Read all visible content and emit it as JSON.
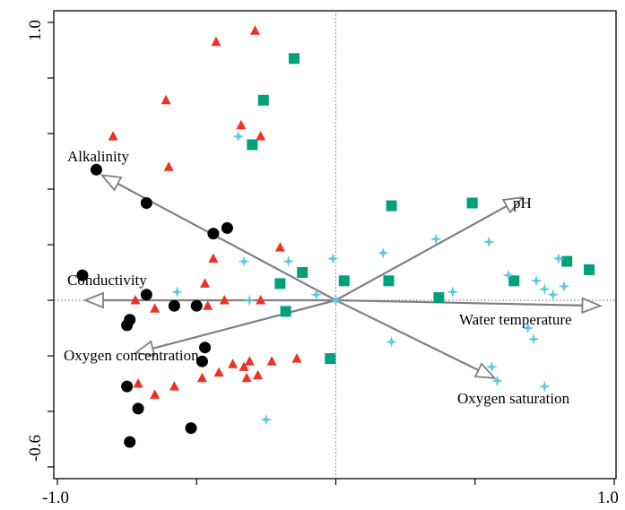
{
  "chart_data": {
    "type": "scatter",
    "subtype": "biplot",
    "title": "",
    "xlabel": "",
    "ylabel": "",
    "xlim": [
      -1.0,
      1.0
    ],
    "ylim": [
      -0.6,
      1.0
    ],
    "x_tick_labels": [
      "-1.0",
      "1.0"
    ],
    "y_tick_labels": [
      "1.0",
      "-0.6"
    ],
    "grid": false,
    "zero_lines": true,
    "colors": {
      "circle": "#000000",
      "triangle": "#ee3124",
      "square": "#00a07a",
      "star": "#5bc8e8",
      "arrow": "#808080"
    },
    "vectors": [
      {
        "label": "Alkalinity",
        "x": -0.84,
        "y": 0.45
      },
      {
        "label": "pH",
        "x": 0.67,
        "y": 0.37
      },
      {
        "label": "Conductivity",
        "x": -0.9,
        "y": 0.0
      },
      {
        "label": "Water temperature",
        "x": 0.95,
        "y": -0.02
      },
      {
        "label": "Oxygen concentration",
        "x": -0.72,
        "y": -0.19
      },
      {
        "label": "Oxygen saturation",
        "x": 0.57,
        "y": -0.28
      }
    ],
    "series": [
      {
        "marker": "circle",
        "points": [
          [
            -0.86,
            0.47
          ],
          [
            -0.68,
            0.35
          ],
          [
            -0.44,
            0.24
          ],
          [
            -0.39,
            0.26
          ],
          [
            -0.91,
            0.09
          ],
          [
            -0.68,
            0.02
          ],
          [
            -0.74,
            -0.07
          ],
          [
            -0.75,
            -0.09
          ],
          [
            -0.58,
            -0.02
          ],
          [
            -0.5,
            -0.02
          ],
          [
            -0.47,
            -0.17
          ],
          [
            -0.48,
            -0.22
          ],
          [
            -0.75,
            -0.31
          ],
          [
            -0.71,
            -0.39
          ],
          [
            -0.52,
            -0.46
          ],
          [
            -0.74,
            -0.51
          ]
        ]
      },
      {
        "marker": "triangle",
        "points": [
          [
            -0.43,
            0.93
          ],
          [
            -0.29,
            0.97
          ],
          [
            -0.61,
            0.72
          ],
          [
            -0.8,
            0.59
          ],
          [
            -0.34,
            0.63
          ],
          [
            -0.27,
            0.59
          ],
          [
            -0.6,
            0.48
          ],
          [
            -0.2,
            0.19
          ],
          [
            -0.44,
            0.15
          ],
          [
            -0.47,
            0.06
          ],
          [
            -0.4,
            0.0
          ],
          [
            -0.46,
            -0.02
          ],
          [
            -0.27,
            0.0
          ],
          [
            -0.72,
            0.0
          ],
          [
            -0.65,
            -0.03
          ],
          [
            -0.37,
            -0.23
          ],
          [
            -0.33,
            -0.24
          ],
          [
            -0.31,
            -0.22
          ],
          [
            -0.23,
            -0.22
          ],
          [
            -0.14,
            -0.21
          ],
          [
            -0.42,
            -0.26
          ],
          [
            -0.48,
            -0.28
          ],
          [
            -0.58,
            -0.31
          ],
          [
            -0.71,
            -0.3
          ],
          [
            -0.32,
            -0.28
          ],
          [
            -0.28,
            -0.27
          ],
          [
            -0.65,
            -0.34
          ]
        ]
      },
      {
        "marker": "square",
        "points": [
          [
            -0.15,
            0.87
          ],
          [
            -0.26,
            0.72
          ],
          [
            -0.3,
            0.56
          ],
          [
            0.2,
            0.34
          ],
          [
            0.49,
            0.35
          ],
          [
            0.83,
            0.14
          ],
          [
            0.91,
            0.11
          ],
          [
            0.64,
            0.07
          ],
          [
            -0.12,
            0.1
          ],
          [
            -0.2,
            0.06
          ],
          [
            0.03,
            0.07
          ],
          [
            0.19,
            0.07
          ],
          [
            0.37,
            0.01
          ],
          [
            -0.18,
            -0.04
          ],
          [
            -0.02,
            -0.21
          ]
        ]
      },
      {
        "marker": "star",
        "points": [
          [
            -0.35,
            0.59
          ],
          [
            0.36,
            0.22
          ],
          [
            0.55,
            0.21
          ],
          [
            0.17,
            0.17
          ],
          [
            0.8,
            0.15
          ],
          [
            -0.33,
            0.14
          ],
          [
            -0.17,
            0.14
          ],
          [
            -0.01,
            0.15
          ],
          [
            0.62,
            0.09
          ],
          [
            0.72,
            0.07
          ],
          [
            0.42,
            0.03
          ],
          [
            0.75,
            0.04
          ],
          [
            0.82,
            0.05
          ],
          [
            0.78,
            0.02
          ],
          [
            -0.57,
            0.03
          ],
          [
            -0.31,
            0.0
          ],
          [
            -0.07,
            0.02
          ],
          [
            0.69,
            -0.1
          ],
          [
            0.2,
            -0.15
          ],
          [
            0.71,
            -0.14
          ],
          [
            0.56,
            -0.24
          ],
          [
            0.58,
            -0.29
          ],
          [
            0.75,
            -0.31
          ],
          [
            -0.25,
            -0.43
          ],
          [
            0.0,
            0.0
          ]
        ]
      }
    ]
  }
}
